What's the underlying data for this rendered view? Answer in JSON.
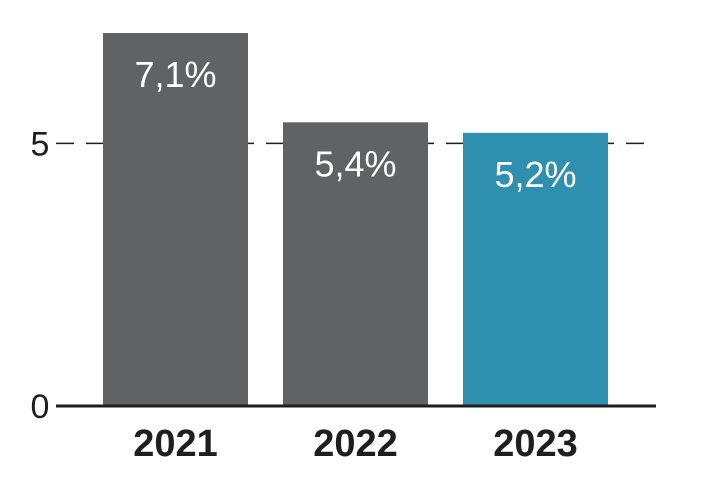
{
  "chart_data": {
    "type": "bar",
    "categories": [
      "2021",
      "2022",
      "2023"
    ],
    "values": [
      7.1,
      5.4,
      5.2
    ],
    "value_labels": [
      "7,1%",
      "5,4%",
      "5,2%"
    ],
    "yticks": [
      {
        "value": 0,
        "label": "0"
      },
      {
        "value": 5,
        "label": "5"
      }
    ],
    "ylim": [
      0,
      7.1
    ],
    "grid": "dashed line at 5",
    "legend": "none",
    "colors": {
      "default_bar": "#616266",
      "highlight_bar": "#2e8faf",
      "axis": "#1e1e1e",
      "grid": "#1e1e1e",
      "value_text": "#ffffff"
    },
    "highlight_index": 2
  }
}
